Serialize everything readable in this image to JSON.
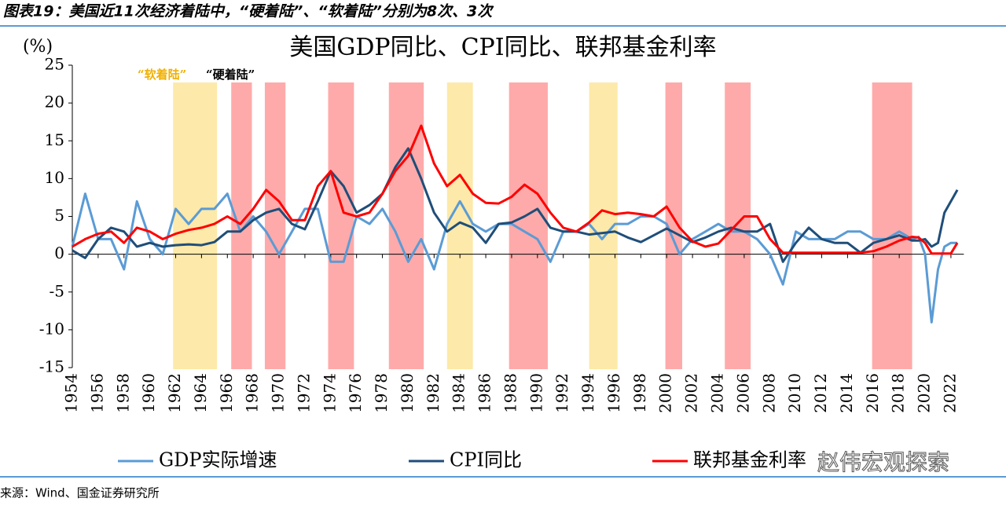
{
  "header": "图表19：美国近11次经济着陆中，“硬着陆”、“软着陆”分别为8次、3次",
  "source": "来源：Wind、国金证券研究所",
  "watermark": "赵伟宏观探索",
  "chart_data": {
    "type": "line",
    "title": "美国GDP同比、CPI同比、联邦基金利率",
    "ylabel": "(%)",
    "xlim": [
      1954,
      2023
    ],
    "xticks": [
      1954,
      1956,
      1958,
      1960,
      1962,
      1964,
      1966,
      1968,
      1970,
      1972,
      1974,
      1976,
      1978,
      1980,
      1982,
      1984,
      1986,
      1988,
      1990,
      1992,
      1994,
      1996,
      1998,
      2000,
      2002,
      2004,
      2006,
      2008,
      2010,
      2012,
      2014,
      2016,
      2018,
      2020,
      2022
    ],
    "ylim": [
      -15,
      25
    ],
    "yticks": [
      -15,
      -10,
      -5,
      0,
      5,
      10,
      15,
      20,
      25
    ],
    "band_types": {
      "soft": {
        "label": "“软着陆”",
        "fill": "#fde9a9",
        "text_color": "#f0b000"
      },
      "hard": {
        "label": "“硬着陆”",
        "fill": "#ffaaaa",
        "text_color": "#000000"
      }
    },
    "bands": [
      {
        "kind": "soft",
        "start": 1961.8,
        "end": 1965.2
      },
      {
        "kind": "hard",
        "start": 1966.3,
        "end": 1967.9
      },
      {
        "kind": "hard",
        "start": 1968.9,
        "end": 1970.5
      },
      {
        "kind": "hard",
        "start": 1973.8,
        "end": 1975.8
      },
      {
        "kind": "hard",
        "start": 1978.5,
        "end": 1981.2
      },
      {
        "kind": "soft",
        "start": 1983,
        "end": 1985
      },
      {
        "kind": "hard",
        "start": 1987.8,
        "end": 1990.8
      },
      {
        "kind": "soft",
        "start": 1994,
        "end": 1996.2
      },
      {
        "kind": "hard",
        "start": 1999.9,
        "end": 2001.2
      },
      {
        "kind": "hard",
        "start": 2004.5,
        "end": 2006.5
      },
      {
        "kind": "hard",
        "start": 2015.9,
        "end": 2019
      }
    ],
    "x": [
      1954,
      1955,
      1956,
      1957,
      1958,
      1959,
      1960,
      1961,
      1962,
      1963,
      1964,
      1965,
      1966,
      1967,
      1968,
      1969,
      1970,
      1971,
      1972,
      1973,
      1974,
      1975,
      1976,
      1977,
      1978,
      1979,
      1980,
      1981,
      1982,
      1983,
      1984,
      1985,
      1986,
      1987,
      1988,
      1989,
      1990,
      1991,
      1992,
      1993,
      1994,
      1995,
      1996,
      1997,
      1998,
      1999,
      2000,
      2001,
      2002,
      2003,
      2004,
      2005,
      2006,
      2007,
      2008,
      2009,
      2010,
      2011,
      2012,
      2013,
      2014,
      2015,
      2016,
      2017,
      2018,
      2019,
      2019.5,
      2020,
      2020.5,
      2021,
      2021.5,
      2022,
      2022.5
    ],
    "series": [
      {
        "name": "GDP实际增速",
        "color": "#5b9bd5",
        "values": [
          1,
          8,
          2,
          2,
          -2,
          7,
          2,
          0,
          6,
          4,
          6,
          6,
          8,
          3,
          5,
          3,
          0,
          3,
          6,
          6,
          -1,
          -1,
          5,
          4,
          6,
          3,
          -1,
          2,
          -2,
          4,
          7,
          4,
          3,
          4,
          4,
          3,
          2,
          -1,
          3,
          3,
          4,
          2,
          4,
          4,
          5,
          5,
          4,
          0,
          2,
          3,
          4,
          3,
          3,
          2,
          0,
          -4,
          3,
          2,
          2,
          2,
          3,
          3,
          2,
          2,
          3,
          2,
          2.3,
          0,
          -9,
          -2,
          1,
          1.5,
          1.5
        ]
      },
      {
        "name": "CPI同比",
        "color": "#1f4e79",
        "values": [
          0.5,
          -0.5,
          2,
          3.5,
          3,
          1,
          1.5,
          1,
          1.2,
          1.3,
          1.2,
          1.6,
          3,
          3,
          4.5,
          5.5,
          6,
          4,
          3.3,
          7,
          11,
          9,
          5.5,
          6.5,
          8,
          11.5,
          14,
          10,
          5.5,
          3,
          4.2,
          3.5,
          1.5,
          4,
          4.2,
          5,
          6,
          3.5,
          3,
          3,
          2.6,
          2.8,
          3,
          2.2,
          1.6,
          2.5,
          3.4,
          2.5,
          1.6,
          2.2,
          3,
          3.5,
          3,
          3,
          4,
          -1,
          1.5,
          3.5,
          2,
          1.5,
          1.5,
          0.2,
          1.5,
          2,
          2.5,
          1.8,
          1.8,
          2,
          1,
          1.5,
          5.5,
          7,
          8.5
        ]
      },
      {
        "name": "联邦基金利率",
        "color": "#ff0000",
        "values": [
          1,
          2,
          2.7,
          3,
          1.5,
          3.5,
          3,
          2,
          2.7,
          3.2,
          3.5,
          4,
          5,
          4,
          6,
          8.5,
          7,
          4.5,
          4.5,
          9,
          11,
          5.5,
          5,
          5.5,
          8,
          11,
          13,
          17,
          12,
          9,
          10.5,
          8,
          6.8,
          6.7,
          7.6,
          9.2,
          8,
          5.5,
          3.5,
          3,
          4.2,
          5.8,
          5.3,
          5.5,
          5.3,
          5,
          6.3,
          3.5,
          1.7,
          1,
          1.4,
          3.2,
          5,
          5,
          2,
          0.2,
          0.2,
          0.2,
          0.2,
          0.2,
          0.2,
          0.2,
          0.4,
          1,
          1.8,
          2.3,
          2.2,
          1.5,
          0.1,
          0.1,
          0.1,
          0.1,
          1.5
        ]
      }
    ]
  }
}
